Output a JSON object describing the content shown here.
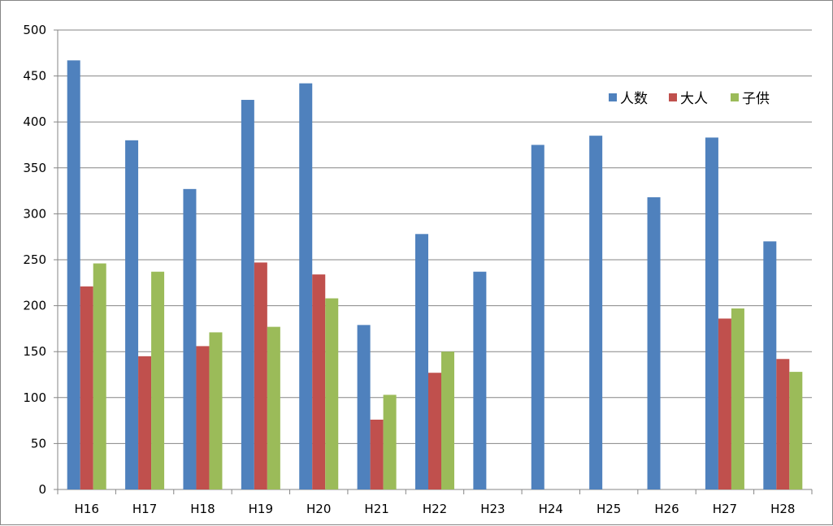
{
  "chart_data": {
    "type": "bar",
    "categories": [
      "H16",
      "H17",
      "H18",
      "H19",
      "H20",
      "H21",
      "H22",
      "H23",
      "H24",
      "H25",
      "H26",
      "H27",
      "H28"
    ],
    "series": [
      {
        "name": "人数",
        "color": "#4F81BD",
        "values": [
          467,
          380,
          327,
          424,
          442,
          179,
          278,
          237,
          375,
          385,
          318,
          383,
          270
        ]
      },
      {
        "name": "大人",
        "color": "#C0504D",
        "values": [
          221,
          145,
          156,
          247,
          234,
          76,
          127,
          null,
          null,
          null,
          null,
          186,
          142
        ]
      },
      {
        "name": "子供",
        "color": "#9BBB59",
        "values": [
          246,
          237,
          171,
          177,
          208,
          103,
          150,
          null,
          null,
          null,
          null,
          197,
          128
        ]
      }
    ],
    "ylim": [
      0,
      500
    ],
    "yticks": [
      0,
      50,
      100,
      150,
      200,
      250,
      300,
      350,
      400,
      450,
      500
    ],
    "grid": true,
    "legend_position": "top-right"
  }
}
